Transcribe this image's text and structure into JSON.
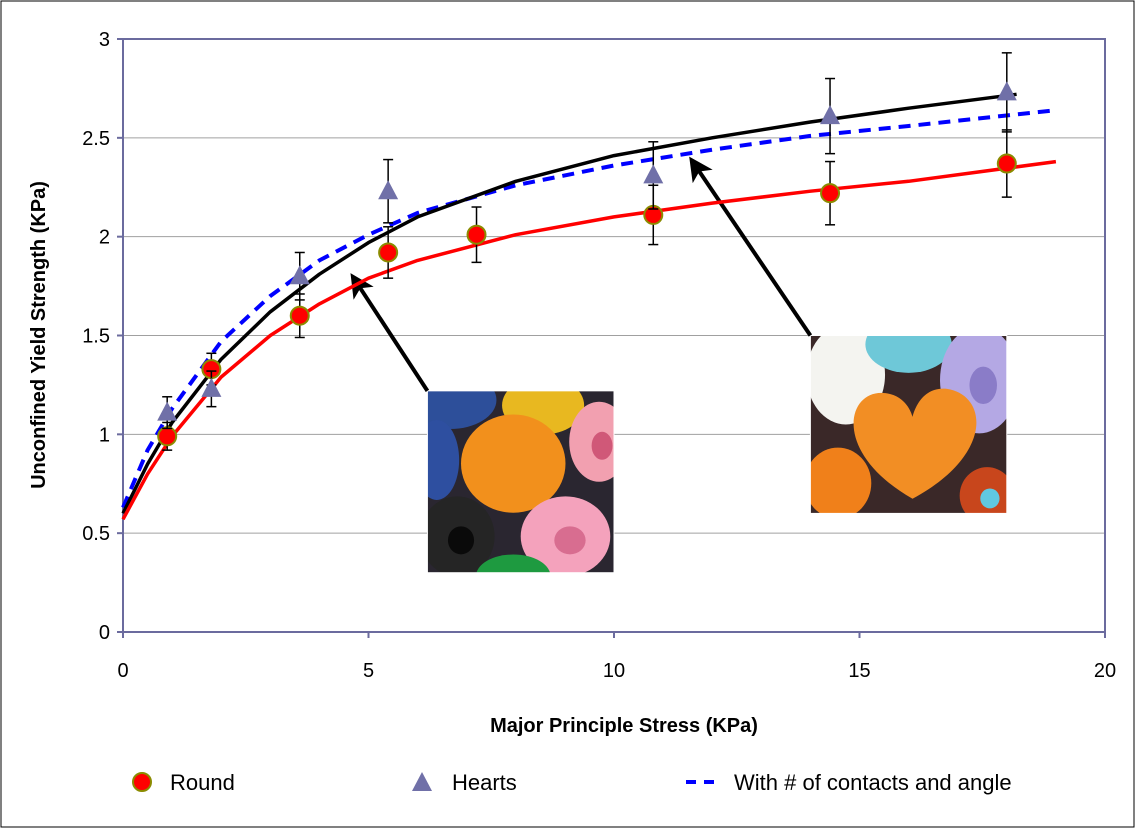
{
  "chart_data": {
    "type": "scatter",
    "title": "",
    "xlabel": "Major Principle Stress (KPa)",
    "ylabel": "Unconfined Yield Strength (KPa)",
    "xlim": [
      0,
      20
    ],
    "ylim": [
      0,
      3
    ],
    "x_ticks": [
      "0",
      "5",
      "10",
      "15",
      "20"
    ],
    "y_ticks": [
      "0",
      "0.5",
      "1",
      "1.5",
      "2",
      "2.5",
      "3"
    ],
    "grid": "horizontal",
    "legend_position": "bottom",
    "series": [
      {
        "name": "Round",
        "kind": "points",
        "marker": "circle",
        "color": "#ff0000",
        "edge_color": "#8b8b00",
        "x": [
          0.9,
          1.8,
          3.6,
          5.4,
          7.2,
          10.8,
          14.4,
          18.0
        ],
        "y": [
          0.99,
          1.33,
          1.6,
          1.92,
          2.01,
          2.11,
          2.22,
          2.37
        ],
        "err": [
          0.07,
          0.08,
          0.11,
          0.13,
          0.14,
          0.15,
          0.16,
          0.17
        ]
      },
      {
        "name": "Hearts",
        "kind": "points",
        "marker": "triangle",
        "color": "#7070a8",
        "x": [
          0.9,
          1.8,
          3.6,
          5.4,
          10.8,
          14.4,
          18.0
        ],
        "y": [
          1.11,
          1.23,
          1.8,
          2.23,
          2.31,
          2.61,
          2.73
        ],
        "err": [
          0.08,
          0.09,
          0.12,
          0.16,
          0.17,
          0.19,
          0.2
        ]
      },
      {
        "name": "With # of contacts and angle",
        "kind": "line",
        "style": "dashed",
        "color": "#0000ff",
        "x": [
          0,
          0.5,
          1,
          2,
          3,
          4,
          5,
          6,
          8,
          10,
          12,
          14,
          16,
          19
        ],
        "y": [
          0.63,
          0.92,
          1.13,
          1.47,
          1.7,
          1.88,
          2.01,
          2.12,
          2.26,
          2.36,
          2.44,
          2.51,
          2.56,
          2.64
        ]
      },
      {
        "name": "",
        "kind": "line",
        "style": "solid",
        "color": "#000000",
        "x": [
          0,
          0.5,
          1,
          2,
          3,
          4,
          5,
          6,
          8,
          10,
          12,
          14,
          16,
          18.2
        ],
        "y": [
          0.6,
          0.85,
          1.06,
          1.38,
          1.62,
          1.81,
          1.97,
          2.1,
          2.28,
          2.41,
          2.5,
          2.58,
          2.65,
          2.72
        ]
      },
      {
        "name": "",
        "kind": "line",
        "style": "solid",
        "color": "#ff0000",
        "x": [
          0,
          0.5,
          1,
          2,
          3,
          4,
          5,
          6,
          8,
          10,
          12,
          14,
          16,
          19
        ],
        "y": [
          0.57,
          0.8,
          0.99,
          1.29,
          1.5,
          1.66,
          1.79,
          1.88,
          2.01,
          2.1,
          2.17,
          2.23,
          2.28,
          2.38
        ]
      }
    ],
    "annotations": [
      {
        "name": "round-beads-photo",
        "picture": "round-beads",
        "points_to": [
          4.7,
          1.79
        ],
        "from": [
          6.2,
          1.22
        ],
        "photo_x": [
          6.2,
          10.0
        ],
        "photo_y": [
          0.3,
          1.22
        ]
      },
      {
        "name": "heart-beads-photo",
        "picture": "heart-beads",
        "points_to": [
          11.6,
          2.38
        ],
        "from": [
          14.0,
          1.5
        ],
        "photo_x": [
          14.0,
          18.0
        ],
        "photo_y": [
          0.6,
          1.5
        ]
      }
    ]
  },
  "legend": {
    "items": [
      {
        "label": "Round",
        "marker": "circle"
      },
      {
        "label": "Hearts",
        "marker": "triangle"
      },
      {
        "label": "With # of contacts and angle",
        "marker": "dash"
      }
    ]
  }
}
